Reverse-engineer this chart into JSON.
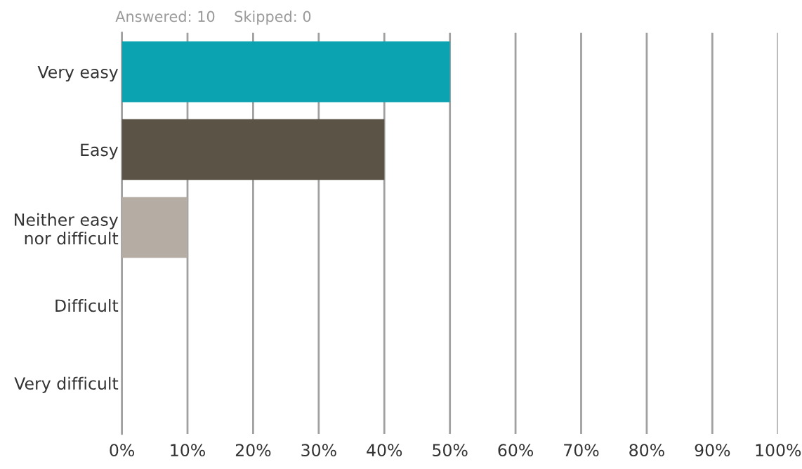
{
  "chart_data": {
    "type": "bar",
    "orientation": "horizontal",
    "subtitle": "Answered: 10    Skipped: 0",
    "categories": [
      "Very easy",
      "Easy",
      "Neither easy\nnor difficult",
      "Difficult",
      "Very difficult"
    ],
    "values": [
      50,
      40,
      10,
      0,
      0
    ],
    "colors": [
      "#0ba2b1",
      "#5b5345",
      "#b5aca3",
      null,
      null
    ],
    "xlim": [
      0,
      100
    ],
    "xticks": [
      {
        "value": 0,
        "label": "0%"
      },
      {
        "value": 10,
        "label": "10%"
      },
      {
        "value": 20,
        "label": "20%"
      },
      {
        "value": 30,
        "label": "30%"
      },
      {
        "value": 40,
        "label": "40%"
      },
      {
        "value": 50,
        "label": "50%"
      },
      {
        "value": 60,
        "label": "60%"
      },
      {
        "value": 70,
        "label": "70%"
      },
      {
        "value": 80,
        "label": "80%"
      },
      {
        "value": 90,
        "label": "90%"
      },
      {
        "value": 100,
        "label": "100%"
      }
    ],
    "grid": "x",
    "legend": false
  }
}
